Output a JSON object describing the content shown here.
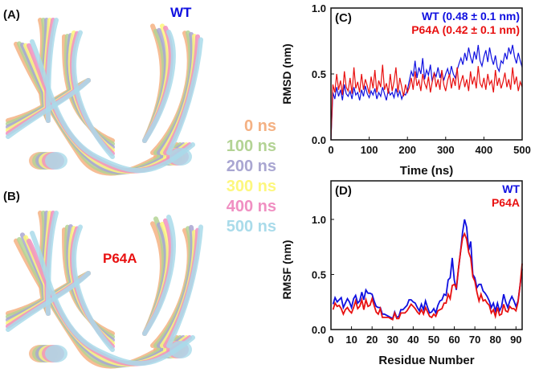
{
  "structures": {
    "panel_a": {
      "label": "(A)",
      "title": "WT",
      "title_color": "#1010e0"
    },
    "panel_b": {
      "label": "(B)",
      "title": "P64A",
      "title_color": "#e81010"
    },
    "legend": [
      {
        "label": "0 ns",
        "color": "#f4b183"
      },
      {
        "label": "100 ns",
        "color": "#b3d394"
      },
      {
        "label": "200 ns",
        "color": "#a9a6d2"
      },
      {
        "label": "300 ns",
        "color": "#fdf77d"
      },
      {
        "label": "400 ns",
        "color": "#f08fc2"
      },
      {
        "label": "500 ns",
        "color": "#a9dbea"
      }
    ]
  },
  "chart_data": [
    {
      "type": "line",
      "panel_label": "(C)",
      "xlabel": "Time (ns)",
      "ylabel": "RMSD (nm)",
      "xlim": [
        0,
        500
      ],
      "ylim": [
        0,
        1.0
      ],
      "xticks": [
        0,
        100,
        200,
        300,
        400,
        500
      ],
      "yticks": [
        "0.0",
        "0.5",
        "1.0"
      ],
      "grid": false,
      "legend_placement": "top-right",
      "x": [
        0,
        5,
        10,
        15,
        20,
        25,
        30,
        35,
        40,
        45,
        50,
        55,
        60,
        65,
        70,
        75,
        80,
        85,
        90,
        95,
        100,
        105,
        110,
        115,
        120,
        125,
        130,
        135,
        140,
        145,
        150,
        155,
        160,
        165,
        170,
        175,
        180,
        185,
        190,
        195,
        200,
        205,
        210,
        215,
        220,
        225,
        230,
        235,
        240,
        245,
        250,
        255,
        260,
        265,
        270,
        275,
        280,
        285,
        290,
        295,
        300,
        305,
        310,
        315,
        320,
        325,
        330,
        335,
        340,
        345,
        350,
        355,
        360,
        365,
        370,
        375,
        380,
        385,
        390,
        395,
        400,
        405,
        410,
        415,
        420,
        425,
        430,
        435,
        440,
        445,
        450,
        455,
        460,
        465,
        470,
        475,
        480,
        485,
        490,
        495,
        500
      ],
      "series": [
        {
          "name": "WT (0.48 ± 0.1 nm)",
          "color": "#1010e0",
          "values": [
            0,
            0.36,
            0.31,
            0.4,
            0.33,
            0.38,
            0.3,
            0.42,
            0.35,
            0.33,
            0.37,
            0.31,
            0.4,
            0.34,
            0.36,
            0.3,
            0.38,
            0.33,
            0.41,
            0.35,
            0.32,
            0.37,
            0.34,
            0.39,
            0.31,
            0.36,
            0.33,
            0.4,
            0.35,
            0.3,
            0.38,
            0.34,
            0.36,
            0.32,
            0.39,
            0.33,
            0.37,
            0.31,
            0.35,
            0.34,
            0.38,
            0.45,
            0.52,
            0.48,
            0.6,
            0.47,
            0.55,
            0.5,
            0.62,
            0.46,
            0.53,
            0.49,
            0.57,
            0.44,
            0.51,
            0.48,
            0.55,
            0.47,
            0.52,
            0.45,
            0.5,
            0.54,
            0.48,
            0.56,
            0.5,
            0.47,
            0.53,
            0.58,
            0.62,
            0.57,
            0.66,
            0.6,
            0.7,
            0.63,
            0.58,
            0.67,
            0.61,
            0.72,
            0.6,
            0.56,
            0.63,
            0.68,
            0.59,
            0.7,
            0.62,
            0.57,
            0.64,
            0.55,
            0.52,
            0.6,
            0.58,
            0.66,
            0.61,
            0.7,
            0.65,
            0.72,
            0.63,
            0.58,
            0.66,
            0.6,
            0.55
          ]
        },
        {
          "name": "P64A (0.42 ± 0.1 nm)",
          "color": "#e81010",
          "values": [
            0,
            0.42,
            0.36,
            0.5,
            0.38,
            0.45,
            0.34,
            0.52,
            0.4,
            0.37,
            0.47,
            0.35,
            0.55,
            0.39,
            0.44,
            0.36,
            0.5,
            0.38,
            0.46,
            0.41,
            0.35,
            0.48,
            0.39,
            0.53,
            0.36,
            0.45,
            0.4,
            0.57,
            0.38,
            0.43,
            0.35,
            0.5,
            0.37,
            0.44,
            0.55,
            0.36,
            0.47,
            0.4,
            0.33,
            0.42,
            0.36,
            0.4,
            0.47,
            0.38,
            0.52,
            0.41,
            0.45,
            0.37,
            0.5,
            0.43,
            0.39,
            0.48,
            0.36,
            0.44,
            0.51,
            0.4,
            0.46,
            0.38,
            0.53,
            0.42,
            0.37,
            0.45,
            0.5,
            0.39,
            0.47,
            0.41,
            0.55,
            0.38,
            0.44,
            0.49,
            0.4,
            0.46,
            0.37,
            0.52,
            0.42,
            0.48,
            0.39,
            0.56,
            0.43,
            0.4,
            0.47,
            0.38,
            0.5,
            0.42,
            0.45,
            0.36,
            0.53,
            0.41,
            0.47,
            0.39,
            0.44,
            0.51,
            0.4,
            0.46,
            0.38,
            0.55,
            0.42,
            0.48,
            0.37,
            0.44,
            0.4
          ]
        }
      ]
    },
    {
      "type": "line",
      "panel_label": "(D)",
      "xlabel": "Residue Number",
      "ylabel": "RMSF (nm)",
      "xlim": [
        0,
        93
      ],
      "ylim": [
        0,
        1.35
      ],
      "xticks": [
        0,
        10,
        20,
        30,
        40,
        50,
        60,
        70,
        80,
        90
      ],
      "yticks": [
        "0.0",
        "0.5",
        "1.0"
      ],
      "grid": false,
      "legend_placement": "top-right",
      "x": [
        1,
        2,
        3,
        4,
        5,
        6,
        7,
        8,
        9,
        10,
        11,
        12,
        13,
        14,
        15,
        16,
        17,
        18,
        19,
        20,
        21,
        22,
        23,
        24,
        25,
        26,
        27,
        28,
        29,
        30,
        31,
        32,
        33,
        34,
        35,
        36,
        37,
        38,
        39,
        40,
        41,
        42,
        43,
        44,
        45,
        46,
        47,
        48,
        49,
        50,
        51,
        52,
        53,
        54,
        55,
        56,
        57,
        58,
        59,
        60,
        61,
        62,
        63,
        64,
        65,
        66,
        67,
        68,
        69,
        70,
        71,
        72,
        73,
        74,
        75,
        76,
        77,
        78,
        79,
        80,
        81,
        82,
        83,
        84,
        85,
        86,
        87,
        88,
        89,
        90,
        91,
        92,
        93
      ],
      "series": [
        {
          "name": "WT",
          "color": "#1010e0",
          "values": [
            0.23,
            0.29,
            0.25,
            0.27,
            0.29,
            0.2,
            0.24,
            0.28,
            0.25,
            0.2,
            0.28,
            0.31,
            0.24,
            0.26,
            0.34,
            0.27,
            0.36,
            0.33,
            0.33,
            0.32,
            0.26,
            0.21,
            0.2,
            0.2,
            0.14,
            0.14,
            0.13,
            0.12,
            0.11,
            0.1,
            0.16,
            0.11,
            0.12,
            0.18,
            0.18,
            0.2,
            0.22,
            0.27,
            0.27,
            0.25,
            0.24,
            0.2,
            0.17,
            0.23,
            0.18,
            0.26,
            0.2,
            0.15,
            0.16,
            0.19,
            0.15,
            0.22,
            0.26,
            0.27,
            0.32,
            0.31,
            0.45,
            0.47,
            0.65,
            0.45,
            0.36,
            0.55,
            0.7,
            0.88,
            1.0,
            0.93,
            0.72,
            0.8,
            0.5,
            0.47,
            0.38,
            0.41,
            0.41,
            0.35,
            0.33,
            0.3,
            0.26,
            0.2,
            0.24,
            0.17,
            0.24,
            0.17,
            0.21,
            0.32,
            0.25,
            0.2,
            0.26,
            0.3,
            0.26,
            0.21,
            0.26,
            0.4,
            0.55
          ]
        },
        {
          "name": "P64A",
          "color": "#e81010",
          "values": [
            0.18,
            0.24,
            0.21,
            0.22,
            0.19,
            0.14,
            0.18,
            0.2,
            0.17,
            0.15,
            0.2,
            0.26,
            0.19,
            0.21,
            0.27,
            0.18,
            0.27,
            0.21,
            0.22,
            0.28,
            0.22,
            0.16,
            0.14,
            0.19,
            0.11,
            0.11,
            0.11,
            0.11,
            0.1,
            0.09,
            0.15,
            0.1,
            0.1,
            0.15,
            0.15,
            0.15,
            0.17,
            0.2,
            0.23,
            0.21,
            0.19,
            0.16,
            0.14,
            0.18,
            0.14,
            0.2,
            0.16,
            0.12,
            0.11,
            0.14,
            0.12,
            0.17,
            0.18,
            0.19,
            0.24,
            0.24,
            0.32,
            0.28,
            0.4,
            0.41,
            0.38,
            0.55,
            0.7,
            0.83,
            0.87,
            0.82,
            0.7,
            0.65,
            0.48,
            0.44,
            0.34,
            0.26,
            0.32,
            0.26,
            0.27,
            0.24,
            0.22,
            0.15,
            0.18,
            0.12,
            0.2,
            0.13,
            0.14,
            0.23,
            0.17,
            0.16,
            0.21,
            0.19,
            0.19,
            0.17,
            0.25,
            0.4,
            0.6
          ]
        }
      ]
    }
  ]
}
